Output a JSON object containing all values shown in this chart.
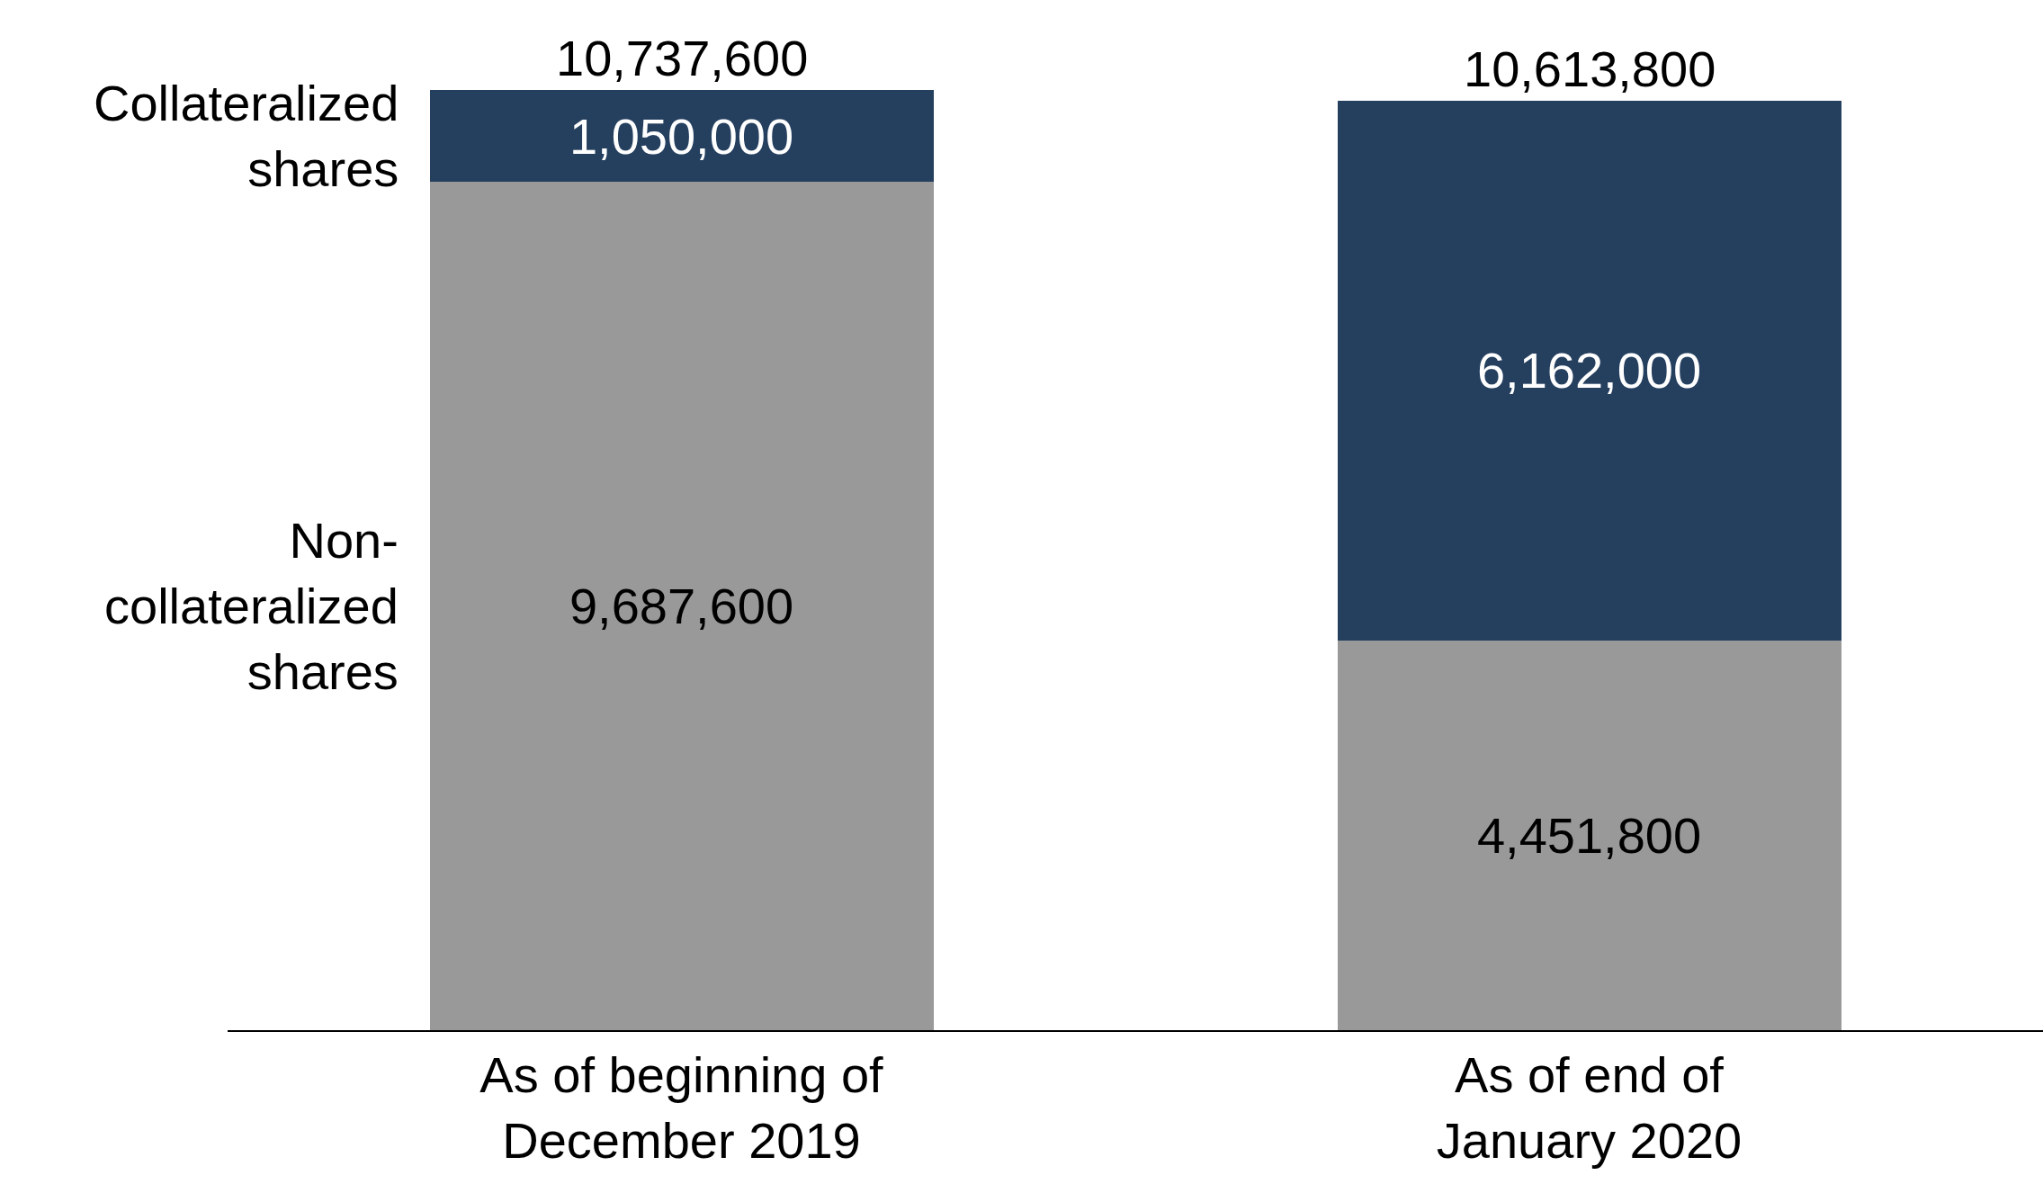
{
  "chart_data": {
    "type": "bar",
    "stacked": true,
    "categories": [
      "As of beginning of December 2019",
      "As of end of January 2020"
    ],
    "series": [
      {
        "name": "Non-collateralized shares",
        "color": "#999999",
        "values": [
          9687600,
          4451800
        ],
        "value_labels": [
          "9,687,600",
          "4,451,800"
        ]
      },
      {
        "name": "Collateralized shares",
        "color": "#253f5f",
        "values": [
          1050000,
          6162000
        ],
        "value_labels": [
          "1,050,000",
          "6,162,000"
        ]
      }
    ],
    "totals": [
      "10,737,600",
      "10,613,800"
    ],
    "legend": false
  }
}
